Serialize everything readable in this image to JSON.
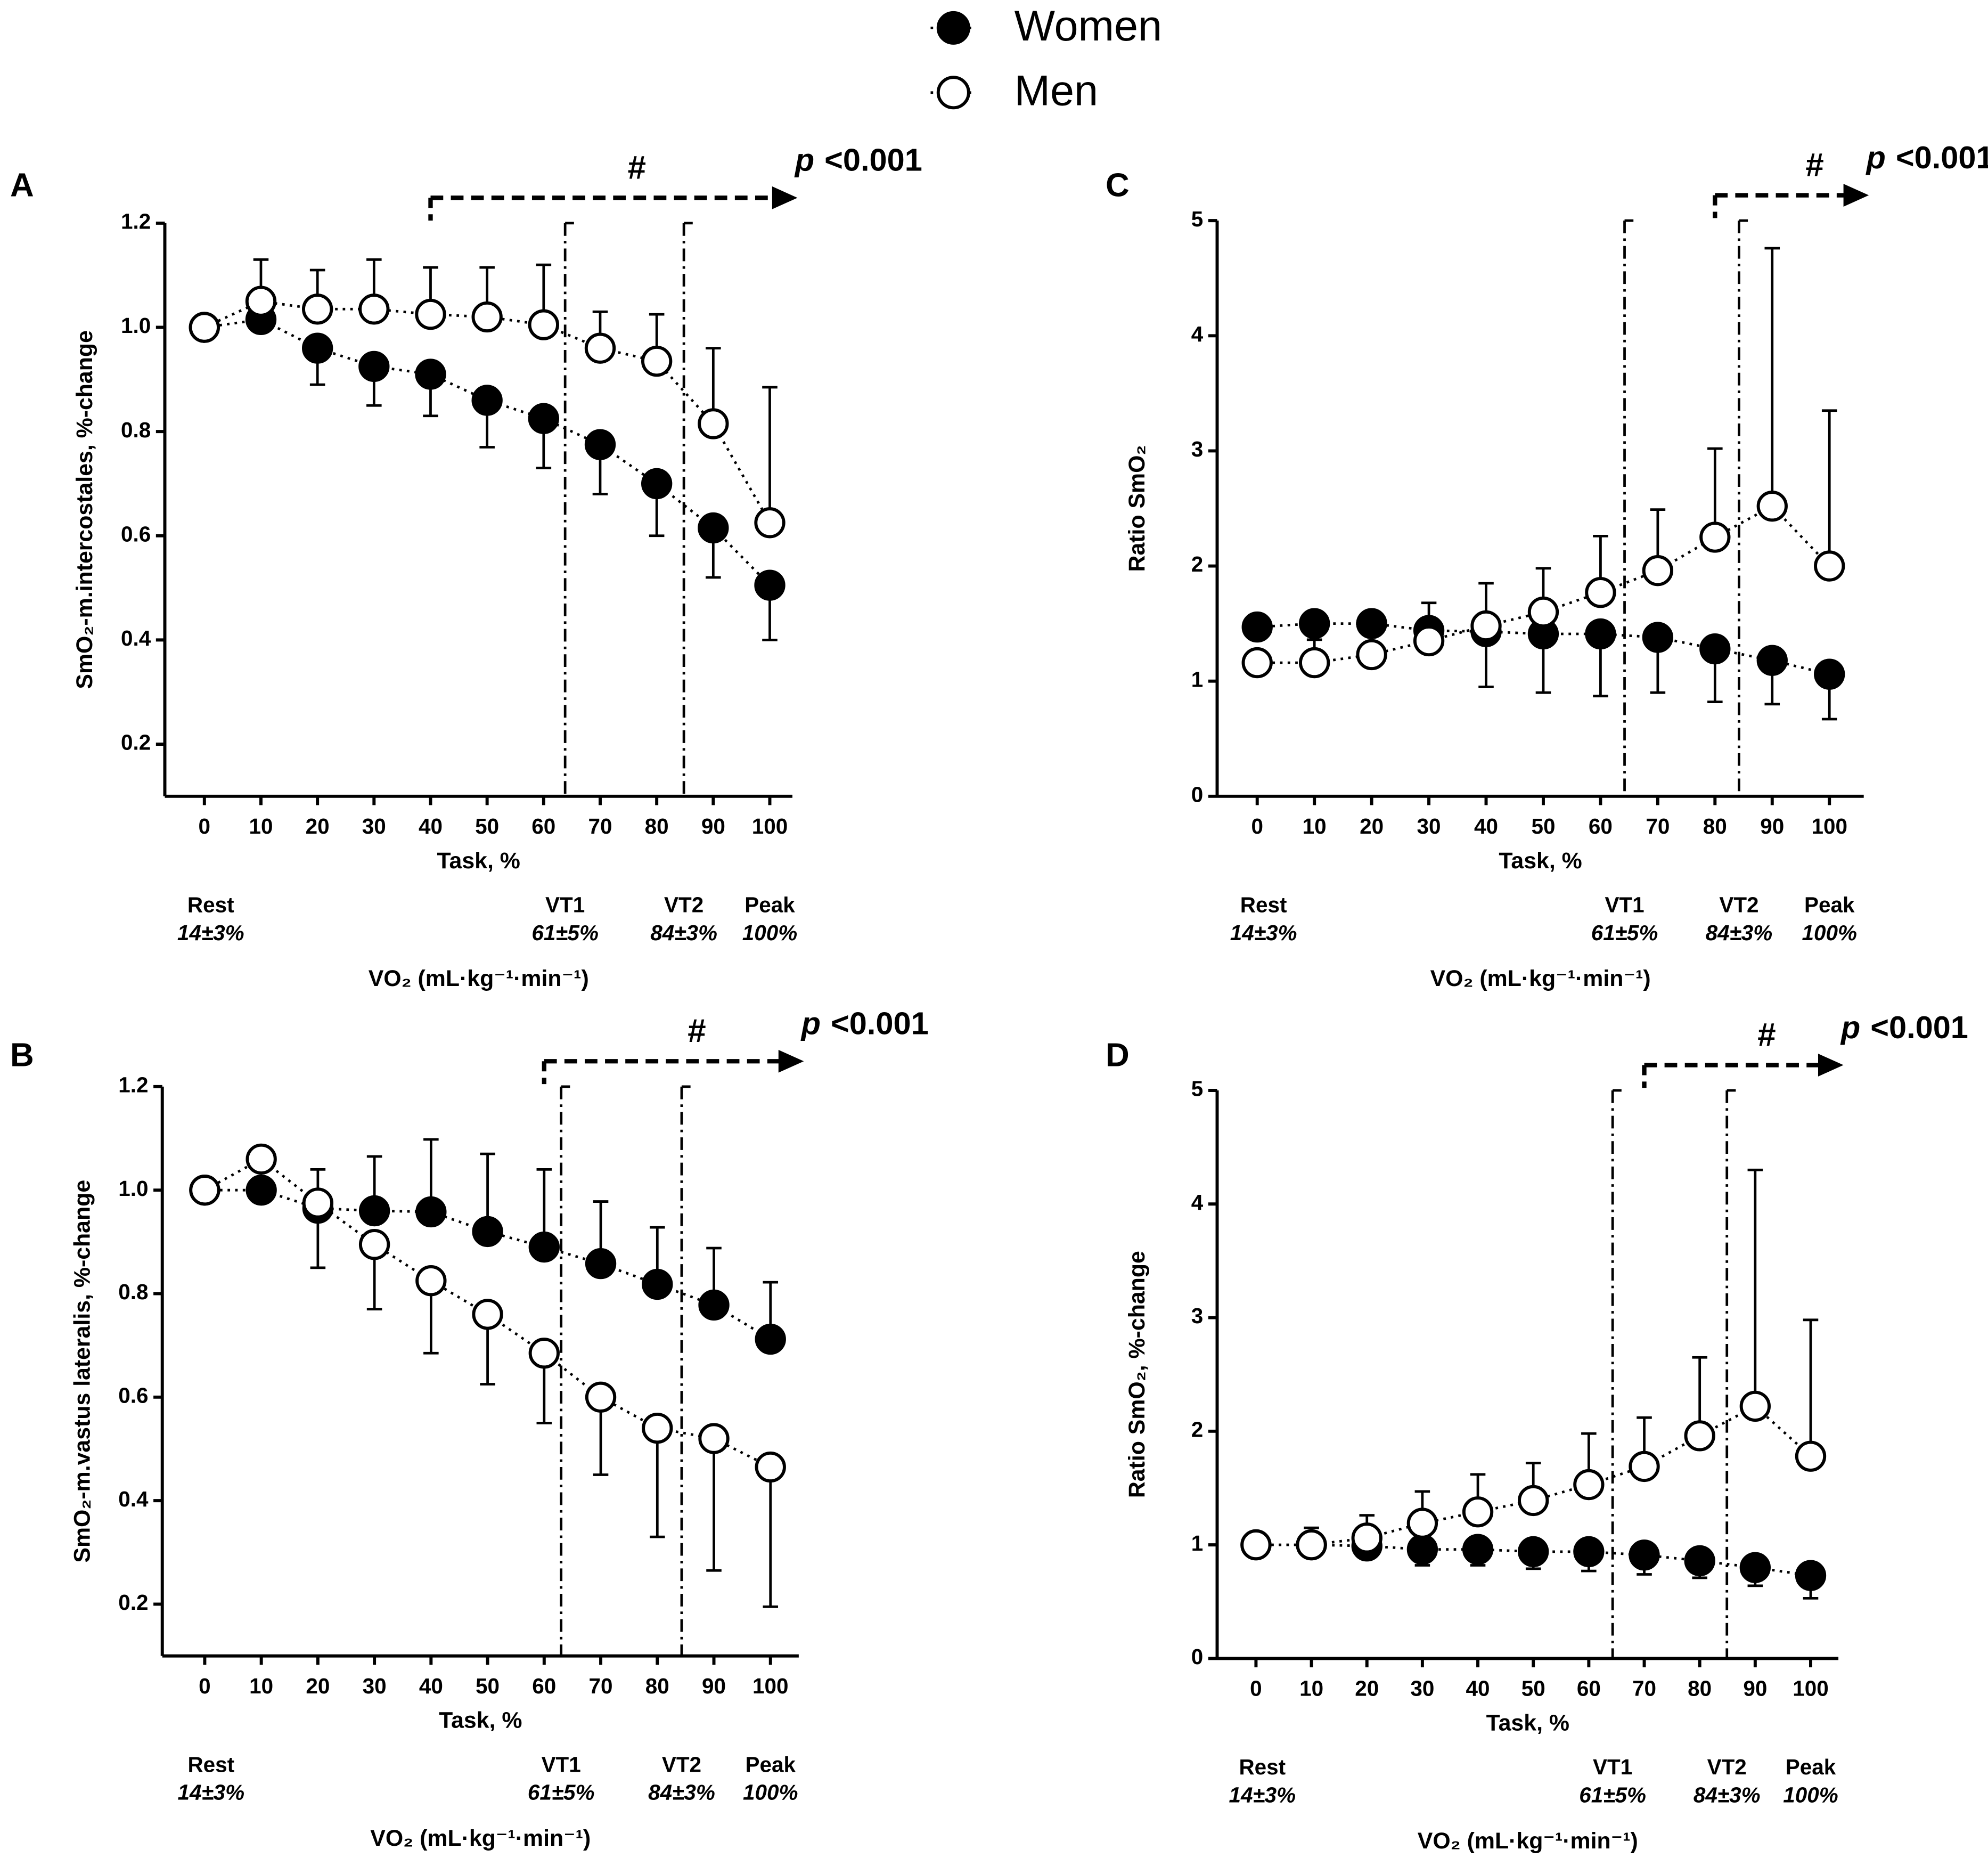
{
  "chart_data": [
    {
      "type": "line",
      "panel": "A",
      "ylabel": "SmO₂-m.intercostales, %-change",
      "xlabel": "Task, %",
      "xlabel2": "VO₂ (mL·kg⁻¹·min⁻¹)",
      "x": [
        0,
        10,
        20,
        30,
        40,
        50,
        60,
        70,
        80,
        90,
        100
      ],
      "xlim": [
        -7,
        104
      ],
      "xticks": [
        0,
        10,
        20,
        30,
        40,
        50,
        60,
        70,
        80,
        90,
        100
      ],
      "ylim": [
        0.1,
        1.2
      ],
      "yticks": [
        0.2,
        0.4,
        0.6,
        {
          "value": 0.8,
          "label": "0.8"
        },
        {
          "value": 1.0,
          "label": "1.0"
        },
        1.2
      ],
      "series": [
        {
          "name": "Women",
          "color": "#000000",
          "error_direction": "down",
          "values": [
            1.0,
            1.015,
            0.96,
            0.925,
            0.91,
            0.86,
            0.825,
            0.775,
            0.7,
            0.615,
            0.505
          ],
          "errors": [
            0,
            0.02,
            0.07,
            0.075,
            0.08,
            0.09,
            0.095,
            0.095,
            0.1,
            0.095,
            0.105
          ]
        },
        {
          "name": "Men",
          "color": "#ffffff",
          "error_direction": "up",
          "values": [
            1.0,
            1.05,
            1.035,
            1.035,
            1.025,
            1.02,
            1.005,
            0.96,
            0.935,
            0.815,
            0.625
          ],
          "errors": [
            0,
            0.08,
            0.075,
            0.095,
            0.09,
            0.095,
            0.115,
            0.07,
            0.09,
            0.145,
            0.26
          ]
        }
      ],
      "rest": {
        "name": "Rest",
        "label": "14±3%"
      },
      "peak": {
        "name": "Peak",
        "label": "100%"
      },
      "vlines": [
        {
          "name": "VT1",
          "x": 63.8,
          "label": "61±5%"
        },
        {
          "name": "VT2",
          "x": 84.8,
          "label": "84±3%"
        }
      ],
      "significance": {
        "symbol": "#",
        "p": "p",
        "threshold": "<0.001",
        "from_x": 40
      }
    },
    {
      "type": "line",
      "panel": "C",
      "ylabel": "Ratio SmO₂",
      "xlabel": "Task, %",
      "xlabel2": "VO₂ (mL·kg⁻¹·min⁻¹)",
      "x": [
        0,
        10,
        20,
        30,
        40,
        50,
        60,
        70,
        80,
        90,
        100
      ],
      "xlim": [
        -7,
        106
      ],
      "xticks": [
        0,
        10,
        20,
        30,
        40,
        50,
        60,
        70,
        80,
        90,
        100
      ],
      "ylim": [
        0,
        5
      ],
      "yticks": [
        0,
        1,
        2,
        3,
        4,
        5
      ],
      "series": [
        {
          "name": "Women",
          "color": "#000000",
          "error_direction": "down",
          "values": [
            1.47,
            1.5,
            1.5,
            1.44,
            1.43,
            1.41,
            1.41,
            1.38,
            1.28,
            1.18,
            1.06
          ],
          "errors": [
            0.05,
            0.05,
            0.05,
            0.1,
            0.48,
            0.51,
            0.54,
            0.48,
            0.46,
            0.38,
            0.39
          ]
        },
        {
          "name": "Men",
          "color": "#ffffff",
          "error_direction": "up",
          "values": [
            1.16,
            1.16,
            1.23,
            1.35,
            1.48,
            1.6,
            1.77,
            1.96,
            2.25,
            2.52,
            2.0
          ],
          "errors": [
            0.1,
            0.2,
            0.2,
            0.33,
            0.37,
            0.38,
            0.49,
            0.53,
            0.77,
            2.24,
            1.35
          ]
        }
      ],
      "rest": {
        "name": "Rest",
        "label": "14±3%"
      },
      "peak": {
        "name": "Peak",
        "label": "100%"
      },
      "vlines": [
        {
          "name": "VT1",
          "x": 64.2,
          "label": "61±5%"
        },
        {
          "name": "VT2",
          "x": 84.2,
          "label": "84±3%"
        }
      ],
      "significance": {
        "symbol": "#",
        "p": "p",
        "threshold": "<0.001",
        "from_x": 80
      }
    },
    {
      "type": "line",
      "panel": "B",
      "ylabel": "SmO₂-m.vastus lateralis, %-change",
      "xlabel": "Task, %",
      "xlabel2": "VO₂ (mL·kg⁻¹·min⁻¹)",
      "x": [
        0,
        10,
        20,
        30,
        40,
        50,
        60,
        70,
        80,
        90,
        100
      ],
      "xlim": [
        -7.5,
        105
      ],
      "xticks": [
        0,
        10,
        20,
        30,
        40,
        50,
        60,
        70,
        80,
        90,
        100
      ],
      "ylim": [
        0.1,
        1.2
      ],
      "yticks": [
        0.2,
        0.4,
        0.6,
        0.8,
        {
          "value": 1.0,
          "label": "1.0"
        },
        1.2
      ],
      "series": [
        {
          "name": "Women",
          "color": "#000000",
          "error_direction": "up",
          "values": [
            1.0,
            1.0,
            0.965,
            0.96,
            0.958,
            0.92,
            0.89,
            0.858,
            0.818,
            0.778,
            0.712
          ],
          "errors": [
            0,
            0.02,
            0.075,
            0.105,
            0.14,
            0.15,
            0.15,
            0.12,
            0.11,
            0.11,
            0.11
          ]
        },
        {
          "name": "Men",
          "color": "#ffffff",
          "error_direction": "down",
          "values": [
            1.0,
            1.06,
            0.975,
            0.895,
            0.825,
            0.76,
            0.685,
            0.6,
            0.54,
            0.52,
            0.465
          ],
          "errors": [
            0,
            0.02,
            0.125,
            0.125,
            0.14,
            0.135,
            0.135,
            0.15,
            0.21,
            0.255,
            0.27
          ]
        }
      ],
      "rest": {
        "name": "Rest",
        "label": "14±3%"
      },
      "peak": {
        "name": "Peak",
        "label": "100%"
      },
      "vlines": [
        {
          "name": "VT1",
          "x": 63,
          "label": "61±5%"
        },
        {
          "name": "VT2",
          "x": 84.3,
          "label": "84±3%"
        }
      ],
      "significance": {
        "symbol": "#",
        "p": "p",
        "threshold": "<0.001",
        "from_x": 60
      }
    },
    {
      "type": "line",
      "panel": "D",
      "ylabel": "Ratio SmO₂, %-change",
      "xlabel": "Task, %",
      "xlabel2": "VO₂ (mL·kg⁻¹·min⁻¹)",
      "x": [
        0,
        10,
        20,
        30,
        40,
        50,
        60,
        70,
        80,
        90,
        100
      ],
      "xlim": [
        -7,
        105
      ],
      "xticks": [
        0,
        10,
        20,
        30,
        40,
        50,
        60,
        70,
        80,
        90,
        100
      ],
      "ylim": [
        0,
        5
      ],
      "yticks": [
        0,
        1,
        2,
        3,
        4,
        5
      ],
      "series": [
        {
          "name": "Women",
          "color": "#000000",
          "error_direction": "down",
          "values": [
            1.0,
            1.0,
            0.99,
            0.96,
            0.96,
            0.94,
            0.94,
            0.91,
            0.86,
            0.8,
            0.73
          ],
          "errors": [
            0.1,
            0.1,
            0.1,
            0.14,
            0.14,
            0.15,
            0.17,
            0.17,
            0.15,
            0.16,
            0.2
          ]
        },
        {
          "name": "Men",
          "color": "#ffffff",
          "error_direction": "up",
          "values": [
            1.0,
            1.0,
            1.06,
            1.19,
            1.29,
            1.39,
            1.53,
            1.69,
            1.96,
            2.22,
            1.78
          ],
          "errors": [
            0,
            0.15,
            0.2,
            0.28,
            0.33,
            0.33,
            0.45,
            0.43,
            0.69,
            2.08,
            1.2
          ]
        }
      ],
      "rest": {
        "name": "Rest",
        "label": "14±3%"
      },
      "peak": {
        "name": "Peak",
        "label": "100%"
      },
      "vlines": [
        {
          "name": "VT1",
          "x": 64.3,
          "label": "61±5%"
        },
        {
          "name": "VT2",
          "x": 84.9,
          "label": "84±3%"
        }
      ],
      "significance": {
        "symbol": "#",
        "p": "p",
        "threshold": "<0.001",
        "from_x": 70
      }
    }
  ]
}
